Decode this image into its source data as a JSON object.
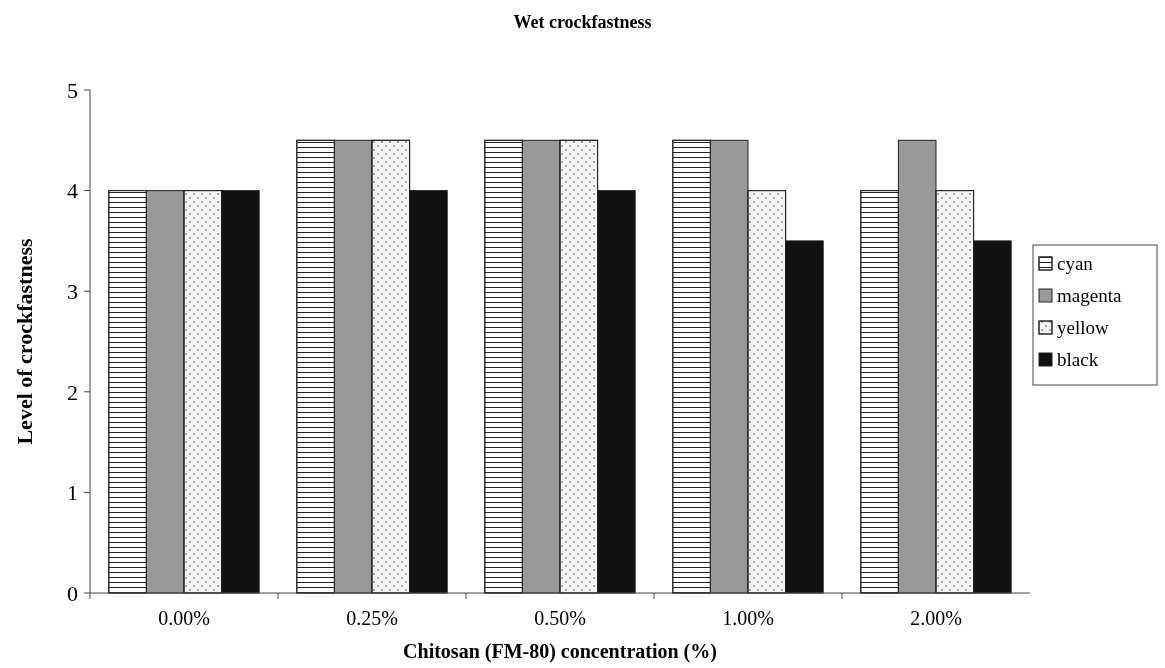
{
  "chart_data": {
    "type": "bar",
    "title": "Wet crockfastness",
    "xlabel": "Chitosan (FM-80) concentration (%)",
    "ylabel": "Level of crockfastness",
    "categories": [
      "0.00%",
      "0.25%",
      "0.50%",
      "1.00%",
      "2.00%"
    ],
    "series": [
      {
        "name": "cyan",
        "color": "#ffffff",
        "values": [
          4,
          4.5,
          4.5,
          4.5,
          4
        ]
      },
      {
        "name": "magenta",
        "color": "#999999",
        "values": [
          4,
          4.5,
          4.5,
          4.5,
          4.5
        ]
      },
      {
        "name": "yellow",
        "color": "#f4f4f4",
        "values": [
          4,
          4.5,
          4.5,
          4,
          4
        ]
      },
      {
        "name": "black",
        "color": "#111111",
        "values": [
          4,
          4,
          4,
          3.5,
          3.5
        ]
      }
    ],
    "ylim": [
      0,
      5
    ],
    "yticks": [
      0,
      1,
      2,
      3,
      4,
      5
    ],
    "grid": false,
    "legend": "right"
  }
}
